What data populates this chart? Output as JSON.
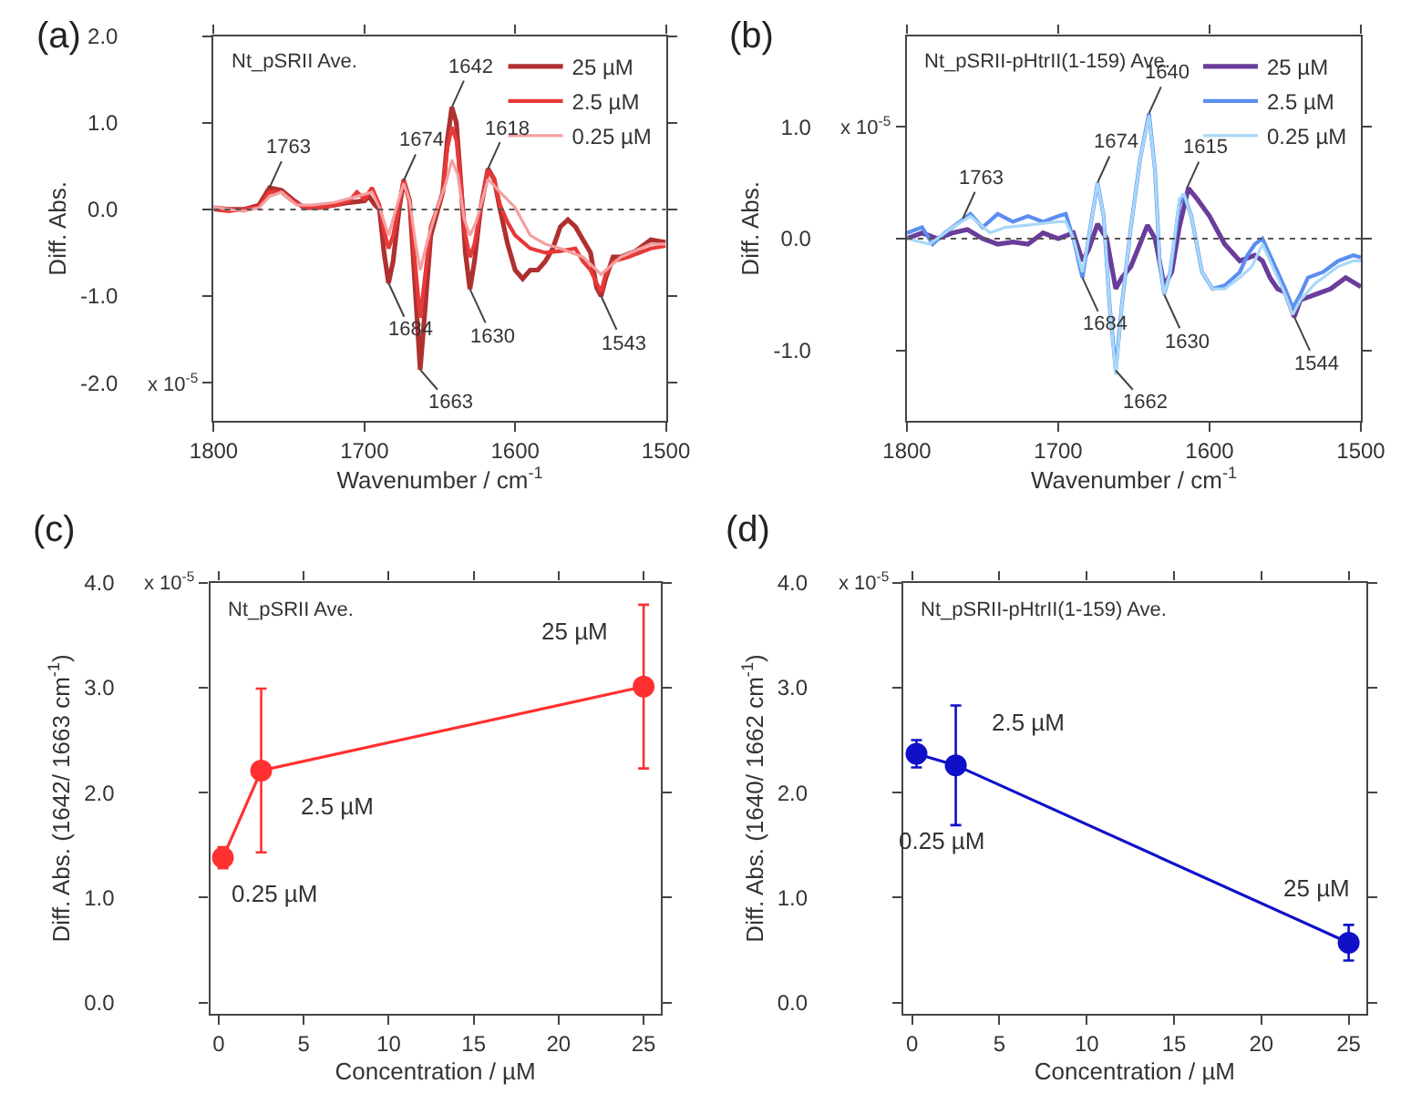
{
  "chart_data": [
    {
      "type": "line",
      "title": "Nt_pSRII Ave.",
      "xlabel": "Wavenumber / cm$^{-1}$",
      "ylabel": "Diff. Abs.",
      "xlim": [
        1800,
        1500
      ],
      "xticks": [
        1800,
        1700,
        1600,
        1500
      ],
      "ylim": [
        -2.44,
        2.0
      ],
      "yticks": [
        {
          "value": -2,
          "label": "-2.0"
        },
        {
          "value": -1,
          "label": "-1.0"
        },
        {
          "value": 0,
          "label": "0.0"
        },
        {
          "value": 1,
          "label": "1.0"
        },
        {
          "value": 2,
          "label": "2.0"
        }
      ],
      "legend": "top right",
      "ref_lines": [
        {
          "axis": "y",
          "value": 0,
          "line_style": "dotted",
          "color": "#555555"
        }
      ],
      "annotations": [
        "(a)",
        "x 10$^{-5}$",
        {
          "text": "1763",
          "x": 1763,
          "y": 0.25
        },
        {
          "text": "1674",
          "x": 1674,
          "y": 0.33
        },
        {
          "text": "1642",
          "x": 1642,
          "y": 1.18
        },
        {
          "text": "1618",
          "x": 1618,
          "y": 0.47
        },
        {
          "text": "1684",
          "x": 1684,
          "y": -0.85
        },
        {
          "text": "1663",
          "x": 1663,
          "y": -1.85
        },
        {
          "text": "1630",
          "x": 1630,
          "y": -0.92
        },
        {
          "text": "1543",
          "x": 1543,
          "y": -1.0
        }
      ],
      "series": [
        {
          "name": "25 µM",
          "color": "#b03030",
          "x": [
            1800,
            1790,
            1780,
            1770,
            1763,
            1755,
            1748,
            1740,
            1730,
            1720,
            1710,
            1700,
            1697,
            1693,
            1690,
            1687,
            1684,
            1681,
            1677,
            1674,
            1670,
            1666,
            1663,
            1660,
            1656,
            1652,
            1648,
            1645,
            1642,
            1639,
            1636,
            1633,
            1630,
            1627,
            1623,
            1618,
            1614,
            1610,
            1605,
            1600,
            1595,
            1590,
            1585,
            1580,
            1575,
            1570,
            1565,
            1560,
            1555,
            1550,
            1546,
            1543,
            1540,
            1535,
            1530,
            1520,
            1510,
            1500
          ],
          "values": [
            0.02,
            0.0,
            0.0,
            0.05,
            0.25,
            0.22,
            0.12,
            0.02,
            0.02,
            0.05,
            0.08,
            0.1,
            0.15,
            0.05,
            0.0,
            -0.5,
            -0.85,
            -0.6,
            0.0,
            0.33,
            0.1,
            -1.0,
            -1.85,
            -1.2,
            -0.3,
            -0.05,
            0.2,
            0.8,
            1.18,
            1.0,
            0.3,
            -0.5,
            -0.92,
            -0.6,
            0.0,
            0.47,
            0.35,
            0.0,
            -0.4,
            -0.7,
            -0.8,
            -0.7,
            -0.7,
            -0.6,
            -0.45,
            -0.2,
            -0.12,
            -0.2,
            -0.35,
            -0.5,
            -0.9,
            -1.0,
            -0.8,
            -0.55,
            -0.55,
            -0.48,
            -0.35,
            -0.38
          ]
        },
        {
          "name": "2.5 µM",
          "color": "#e83838",
          "x": [
            1800,
            1790,
            1780,
            1770,
            1763,
            1755,
            1748,
            1740,
            1730,
            1720,
            1710,
            1705,
            1700,
            1695,
            1690,
            1687,
            1684,
            1681,
            1677,
            1674,
            1670,
            1666,
            1663,
            1660,
            1656,
            1652,
            1648,
            1645,
            1642,
            1639,
            1636,
            1633,
            1630,
            1627,
            1623,
            1618,
            1614,
            1610,
            1605,
            1600,
            1590,
            1580,
            1570,
            1560,
            1555,
            1550,
            1546,
            1543,
            1540,
            1535,
            1525,
            1510,
            1500
          ],
          "values": [
            0.0,
            -0.02,
            0.0,
            0.03,
            0.2,
            0.2,
            0.1,
            0.03,
            0.02,
            0.05,
            0.1,
            0.2,
            0.12,
            0.25,
            0.05,
            -0.25,
            -0.45,
            -0.3,
            0.05,
            0.35,
            0.1,
            -0.7,
            -1.25,
            -0.8,
            -0.2,
            0.0,
            0.2,
            0.7,
            0.95,
            0.8,
            0.3,
            -0.3,
            -0.55,
            -0.4,
            0.0,
            0.45,
            0.35,
            0.05,
            -0.15,
            -0.3,
            -0.45,
            -0.5,
            -0.48,
            -0.45,
            -0.6,
            -0.7,
            -0.85,
            -0.95,
            -0.75,
            -0.6,
            -0.55,
            -0.45,
            -0.42
          ]
        },
        {
          "name": "0.25 µM",
          "color": "#f4a0a0",
          "x": [
            1800,
            1790,
            1780,
            1770,
            1763,
            1755,
            1745,
            1735,
            1720,
            1705,
            1695,
            1690,
            1684,
            1680,
            1674,
            1670,
            1666,
            1663,
            1658,
            1652,
            1646,
            1642,
            1638,
            1634,
            1630,
            1626,
            1618,
            1610,
            1600,
            1590,
            1580,
            1570,
            1555,
            1543,
            1530,
            1510,
            1500
          ],
          "values": [
            0.03,
            0.0,
            -0.02,
            0.02,
            0.15,
            0.2,
            0.05,
            0.05,
            0.08,
            0.15,
            0.2,
            0.02,
            -0.3,
            -0.05,
            0.3,
            0.1,
            -0.4,
            -0.7,
            -0.35,
            0.0,
            0.3,
            0.57,
            0.4,
            -0.1,
            -0.3,
            -0.15,
            0.35,
            0.2,
            0.02,
            -0.3,
            -0.4,
            -0.45,
            -0.55,
            -0.75,
            -0.55,
            -0.4,
            -0.4
          ]
        }
      ]
    },
    {
      "type": "line",
      "title": "Nt_pSRII-pHtrII(1-159) Ave.",
      "xlabel": "Wavenumber / cm$^{-1}$",
      "ylabel": "Diff. Abs.",
      "xlim": [
        1800,
        1500
      ],
      "xticks": [
        1800,
        1700,
        1600,
        1500
      ],
      "ylim": [
        -1.63,
        1.81
      ],
      "yticks": [
        {
          "value": -1,
          "label": "-1.0"
        },
        {
          "value": 0,
          "label": "0.0"
        },
        {
          "value": 1,
          "label": "1.0"
        }
      ],
      "legend": "top right",
      "ref_lines": [
        {
          "axis": "y",
          "value": 0,
          "line_style": "dotted",
          "color": "#555555"
        }
      ],
      "annotations": [
        "(b)",
        "x 10$^{-5}$",
        {
          "text": "1763",
          "x": 1763,
          "y": 0.18
        },
        {
          "text": "1674",
          "x": 1674,
          "y": 0.5
        },
        {
          "text": "1640",
          "x": 1640,
          "y": 1.12
        },
        {
          "text": "1615",
          "x": 1615,
          "y": 0.45
        },
        {
          "text": "1684",
          "x": 1684,
          "y": -0.35
        },
        {
          "text": "1662",
          "x": 1662,
          "y": -1.18
        },
        {
          "text": "1630",
          "x": 1630,
          "y": -0.5
        },
        {
          "text": "1544",
          "x": 1544,
          "y": -0.7
        }
      ],
      "series": [
        {
          "name": "25 µM",
          "color": "#6a3d9a",
          "x": [
            1800,
            1790,
            1780,
            1770,
            1760,
            1750,
            1740,
            1730,
            1720,
            1710,
            1700,
            1690,
            1684,
            1680,
            1674,
            1668,
            1662,
            1658,
            1652,
            1646,
            1641,
            1636,
            1630,
            1625,
            1620,
            1614,
            1608,
            1600,
            1590,
            1580,
            1570,
            1565,
            1560,
            1555,
            1550,
            1544,
            1540,
            1530,
            1520,
            1510,
            1500
          ],
          "values": [
            0.0,
            0.05,
            0.0,
            0.05,
            0.08,
            0.0,
            -0.05,
            -0.03,
            -0.05,
            0.05,
            0.0,
            0.05,
            -0.2,
            -0.1,
            0.13,
            0.0,
            -0.45,
            -0.35,
            -0.25,
            -0.05,
            0.12,
            0.0,
            -0.42,
            -0.3,
            0.1,
            0.45,
            0.35,
            0.2,
            -0.05,
            -0.2,
            -0.15,
            -0.2,
            -0.35,
            -0.45,
            -0.48,
            -0.7,
            -0.55,
            -0.5,
            -0.45,
            -0.35,
            -0.43
          ]
        },
        {
          "name": "2.5 µM",
          "color": "#5b8ef0",
          "x": [
            1800,
            1790,
            1783,
            1775,
            1765,
            1758,
            1750,
            1740,
            1730,
            1720,
            1710,
            1700,
            1695,
            1690,
            1684,
            1680,
            1674,
            1670,
            1666,
            1662,
            1658,
            1652,
            1646,
            1640,
            1636,
            1633,
            1630,
            1626,
            1620,
            1617,
            1612,
            1605,
            1598,
            1590,
            1580,
            1575,
            1570,
            1565,
            1560,
            1555,
            1550,
            1545,
            1540,
            1535,
            1525,
            1515,
            1505,
            1500
          ],
          "values": [
            0.05,
            0.1,
            -0.05,
            0.05,
            0.15,
            0.22,
            0.1,
            0.22,
            0.15,
            0.2,
            0.15,
            0.2,
            0.22,
            0.0,
            -0.35,
            0.0,
            0.5,
            0.2,
            -0.6,
            -1.18,
            -0.6,
            0.1,
            0.7,
            1.12,
            0.6,
            -0.2,
            -0.5,
            -0.3,
            0.3,
            0.4,
            0.2,
            -0.3,
            -0.45,
            -0.42,
            -0.3,
            -0.15,
            -0.05,
            0.0,
            -0.15,
            -0.3,
            -0.45,
            -0.62,
            -0.5,
            -0.35,
            -0.3,
            -0.2,
            -0.15,
            -0.17
          ]
        },
        {
          "name": "0.25 µM",
          "color": "#a8d8f8",
          "x": [
            1800,
            1785,
            1770,
            1758,
            1745,
            1735,
            1720,
            1700,
            1695,
            1690,
            1684,
            1680,
            1674,
            1670,
            1666,
            1662,
            1658,
            1652,
            1646,
            1640,
            1636,
            1633,
            1630,
            1626,
            1620,
            1617,
            1612,
            1605,
            1598,
            1590,
            1580,
            1572,
            1565,
            1560,
            1550,
            1545,
            1540,
            1530,
            1515,
            1505,
            1500
          ],
          "values": [
            0.0,
            -0.05,
            0.1,
            0.2,
            0.05,
            0.1,
            0.12,
            0.15,
            0.15,
            0.0,
            -0.3,
            0.0,
            0.5,
            0.2,
            -0.6,
            -1.22,
            -0.6,
            0.1,
            0.7,
            1.1,
            0.6,
            -0.2,
            -0.5,
            -0.3,
            0.35,
            0.4,
            0.2,
            -0.3,
            -0.45,
            -0.45,
            -0.35,
            -0.25,
            -0.05,
            -0.2,
            -0.5,
            -0.68,
            -0.55,
            -0.4,
            -0.25,
            -0.2,
            -0.2
          ]
        }
      ]
    },
    {
      "type": "line",
      "title": "Nt_pSRII Ave.",
      "xlabel": "Concentration / µM",
      "ylabel": "Diff. Abs. (1642/ 1663 cm$^{-1}$)",
      "xlim": [
        -0.5,
        26
      ],
      "xticks": [
        0,
        5,
        10,
        15,
        20,
        25
      ],
      "ylim": [
        -0.11,
        4.0
      ],
      "yticks": [
        {
          "value": 0,
          "label": "0.0"
        },
        {
          "value": 1,
          "label": "1.0"
        },
        {
          "value": 2,
          "label": "2.0"
        },
        {
          "value": 3,
          "label": "3.0"
        },
        {
          "value": 4,
          "label": "4.0"
        }
      ],
      "marker": "circle",
      "annotations": [
        "(c)",
        "x 10$^{-5}$",
        {
          "text": "0.25 µM",
          "x": 0.25,
          "y": 1.38
        },
        {
          "text": "2.5 µM",
          "x": 2.5,
          "y": 2.21
        },
        {
          "text": "25 µM",
          "x": 25,
          "y": 3.01
        }
      ],
      "series": [
        {
          "color": "#ff3030",
          "x": [
            0.25,
            2.5,
            25
          ],
          "values": [
            1.38,
            2.21,
            3.01
          ],
          "errors": [
            0.1,
            0.78,
            0.78
          ]
        }
      ]
    },
    {
      "type": "line",
      "title": "Nt_pSRII-pHtrII(1-159) Ave.",
      "xlabel": "Concentration / µM",
      "ylabel": "Diff. Abs. (1640/ 1662 cm$^{-1}$)",
      "xlim": [
        -0.5,
        26
      ],
      "xticks": [
        0,
        5,
        10,
        15,
        20,
        25
      ],
      "ylim": [
        -0.11,
        4.0
      ],
      "yticks": [
        {
          "value": 0,
          "label": "0.0"
        },
        {
          "value": 1,
          "label": "1.0"
        },
        {
          "value": 2,
          "label": "2.0"
        },
        {
          "value": 3,
          "label": "3.0"
        },
        {
          "value": 4,
          "label": "4.0"
        }
      ],
      "marker": "circle",
      "annotations": [
        "(d)",
        "x 10$^{-5}$",
        "0.25 µM",
        {
          "text": "2.5 µM",
          "x": 2.5,
          "y": 2.26
        },
        {
          "text": "25 µM",
          "x": 25,
          "y": 0.57
        }
      ],
      "series": [
        {
          "color": "#1010c8",
          "x": [
            0.25,
            2.5,
            25
          ],
          "values": [
            2.37,
            2.26,
            0.57
          ],
          "errors": [
            0.13,
            0.57,
            0.17
          ]
        }
      ]
    }
  ]
}
